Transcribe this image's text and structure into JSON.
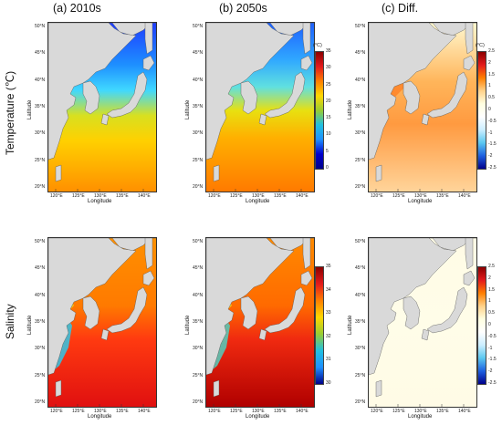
{
  "columns": [
    {
      "id": "a",
      "title": "(a) 2010s"
    },
    {
      "id": "b",
      "title": "(b) 2050s"
    },
    {
      "id": "c",
      "title": "(c) Diff."
    }
  ],
  "rows": [
    {
      "id": "temp",
      "title": "Temperature (℃)"
    },
    {
      "id": "sal",
      "title": "Salinity"
    }
  ],
  "axes": {
    "xlabel": "Longitude",
    "ylabel": "Latitude",
    "lon_ticks": [
      "120°E",
      "125°E",
      "130°E",
      "135°E",
      "140°E"
    ],
    "lat_ticks": [
      "50°N",
      "45°N",
      "40°N",
      "35°N",
      "30°N",
      "25°N",
      "20°N"
    ]
  },
  "colorbars": {
    "temp": {
      "unit": "(°C)",
      "ticks": [
        "35",
        "30",
        "25",
        "20",
        "15",
        "10",
        "5",
        "0"
      ],
      "colors": [
        "#8b0000",
        "#e31a1c",
        "#ff7f00",
        "#ffd700",
        "#9acd32",
        "#20c0e0",
        "#1e90ff",
        "#0000cd",
        "#00008b"
      ]
    },
    "temp_diff": {
      "unit": "(°C)",
      "ticks": [
        "2.5",
        "2",
        "1.5",
        "1",
        "0.5",
        "0",
        "-0.5",
        "-1",
        "-1.5",
        "-2",
        "-2.5"
      ],
      "colors": [
        "#8b0000",
        "#e31a1c",
        "#ff7f00",
        "#ffd28a",
        "#ffffe0",
        "#ffffff",
        "#cceeff",
        "#5bc8f0",
        "#1e60e0",
        "#00008b"
      ]
    },
    "sal": {
      "ticks": [
        "35",
        "34",
        "33",
        "32",
        "31",
        "30"
      ],
      "colors": [
        "#8b0000",
        "#e31a1c",
        "#ff7f00",
        "#ffd700",
        "#9acd32",
        "#20c0e0",
        "#1e90ff",
        "#00008b"
      ]
    },
    "sal_diff": {
      "ticks": [
        "2.5",
        "2",
        "1.5",
        "1",
        "0.5",
        "0",
        "-0.5",
        "-1",
        "-1.5",
        "-2",
        "-2.5"
      ],
      "colors": [
        "#8b0000",
        "#e31a1c",
        "#ff7f00",
        "#ffd28a",
        "#ffffe0",
        "#ffffff",
        "#cceeff",
        "#5bc8f0",
        "#1e60e0",
        "#00008b"
      ]
    }
  },
  "colors": {
    "land": "#d9d9d9",
    "coast": "#555555"
  }
}
